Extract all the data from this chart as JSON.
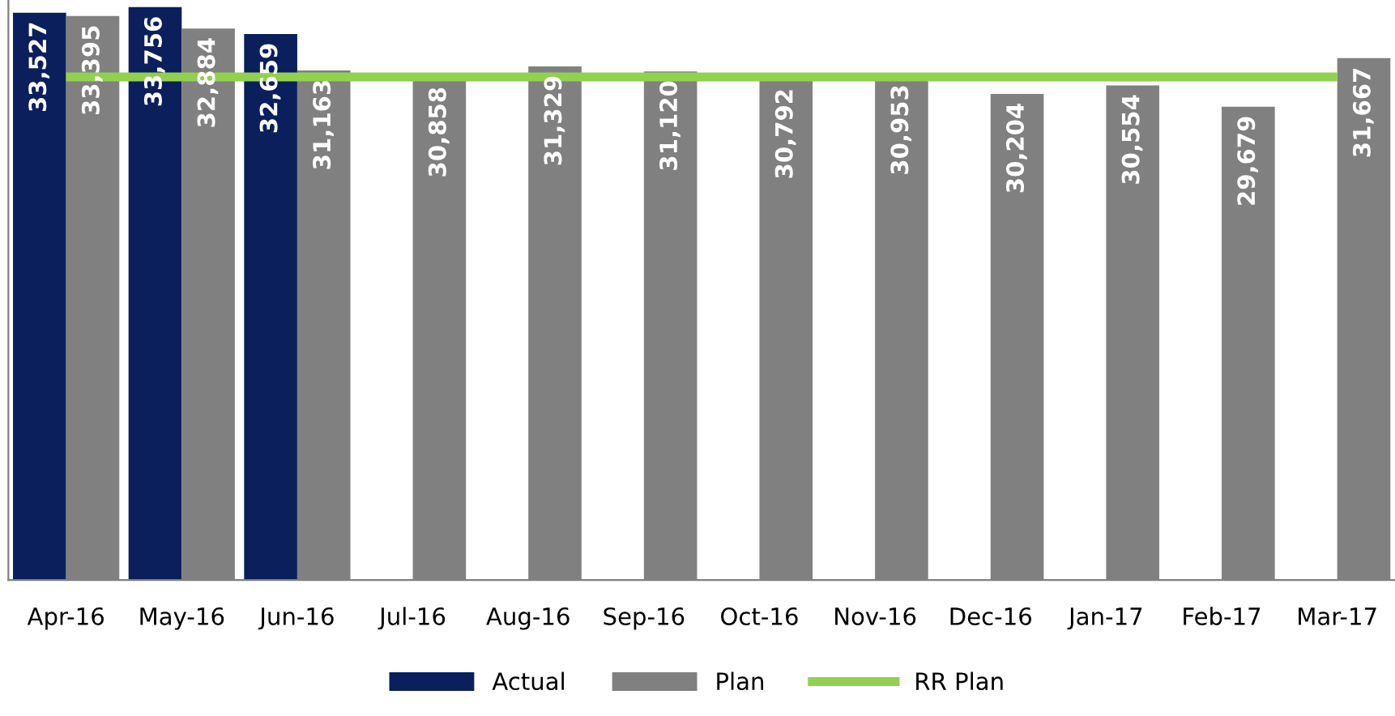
{
  "chart_data": {
    "type": "bar",
    "categories": [
      "Apr-16",
      "May-16",
      "Jun-16",
      "Jul-16",
      "Aug-16",
      "Sep-16",
      "Oct-16",
      "Nov-16",
      "Dec-16",
      "Jan-17",
      "Feb-17",
      "Mar-17"
    ],
    "series": [
      {
        "name": "Actual",
        "color": "#0a1f5c",
        "values": [
          33527,
          33756,
          32659,
          null,
          null,
          null,
          null,
          null,
          null,
          null,
          null,
          null
        ],
        "value_labels": [
          "33,527",
          "33,756",
          "32,659",
          null,
          null,
          null,
          null,
          null,
          null,
          null,
          null,
          null
        ]
      },
      {
        "name": "Plan",
        "color": "#808080",
        "values": [
          33395,
          32884,
          31163,
          30858,
          31329,
          31120,
          30792,
          30953,
          30204,
          30554,
          29679,
          31667
        ],
        "value_labels": [
          "33,395",
          "32,884",
          "31,163",
          "30,858",
          "31,329",
          "31,120",
          "30,792",
          "30,953",
          "30,204",
          "30,554",
          "29,679",
          "31,667"
        ]
      },
      {
        "name": "RR Plan",
        "type": "line",
        "color": "#92d050",
        "values": [
          30900,
          30900,
          30900,
          30900,
          30900,
          30900,
          30900,
          30900,
          30900,
          30900,
          30900,
          30900
        ]
      }
    ],
    "ylim": [
      10300,
      34050
    ],
    "legend": "bottom",
    "tick_labels": "x",
    "grid": false
  }
}
